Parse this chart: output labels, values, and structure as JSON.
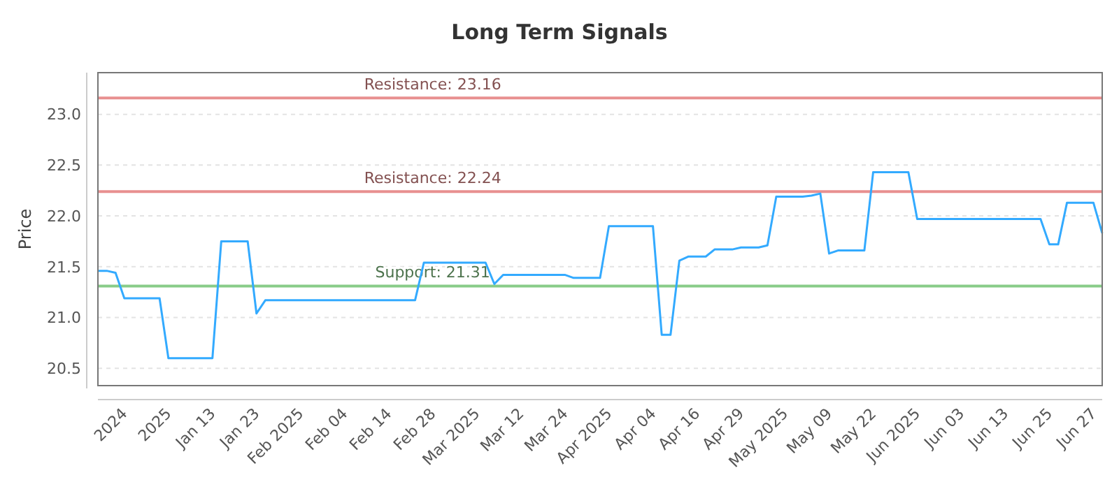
{
  "chart_data": {
    "type": "line",
    "title": "Long Term Signals",
    "ylabel": "Price",
    "categories": [
      null,
      null,
      null,
      "2024",
      null,
      null,
      null,
      null,
      "2025",
      null,
      null,
      null,
      null,
      "Jan 13",
      null,
      null,
      null,
      null,
      "Jan 23",
      null,
      null,
      null,
      null,
      "Feb 2025",
      null,
      null,
      null,
      null,
      "Feb 04",
      null,
      null,
      null,
      null,
      "Feb 14",
      null,
      null,
      null,
      null,
      "Feb 28",
      null,
      null,
      null,
      null,
      "Mar 2025",
      null,
      null,
      null,
      null,
      "Mar 12",
      null,
      null,
      null,
      null,
      "Mar 24",
      null,
      null,
      null,
      null,
      "Apr 2025",
      null,
      null,
      null,
      null,
      "Apr 04",
      null,
      null,
      null,
      null,
      "Apr 16",
      null,
      null,
      null,
      null,
      "Apr 29",
      null,
      null,
      null,
      null,
      "May 2025",
      null,
      null,
      null,
      null,
      "May 09",
      null,
      null,
      null,
      null,
      "May 22",
      null,
      null,
      null,
      null,
      "Jun 2025",
      null,
      null,
      null,
      null,
      "Jun 03",
      null,
      null,
      null,
      null,
      "Jun 13",
      null,
      null,
      null,
      null,
      "Jun 25",
      null,
      null,
      null,
      null,
      "Jun 27",
      null
    ],
    "series": [
      {
        "color": "#33aaff",
        "values": [
          21.46,
          21.46,
          21.44,
          21.19,
          21.19,
          21.19,
          21.19,
          21.19,
          20.6,
          20.6,
          20.6,
          20.6,
          20.6,
          20.6,
          21.75,
          21.75,
          21.75,
          21.75,
          21.04,
          21.17,
          21.17,
          21.17,
          21.17,
          21.17,
          21.17,
          21.17,
          21.17,
          21.17,
          21.17,
          21.17,
          21.17,
          21.17,
          21.17,
          21.17,
          21.17,
          21.17,
          21.17,
          21.54,
          21.54,
          21.54,
          21.54,
          21.54,
          21.54,
          21.54,
          21.54,
          21.33,
          21.42,
          21.42,
          21.42,
          21.42,
          21.42,
          21.42,
          21.42,
          21.42,
          21.39,
          21.39,
          21.39,
          21.39,
          21.9,
          21.9,
          21.9,
          21.9,
          21.9,
          21.9,
          20.83,
          20.83,
          21.56,
          21.6,
          21.6,
          21.6,
          21.67,
          21.67,
          21.67,
          21.69,
          21.69,
          21.69,
          21.71,
          22.19,
          22.19,
          22.19,
          22.19,
          22.2,
          22.22,
          21.63,
          21.66,
          21.66,
          21.66,
          21.66,
          22.43,
          22.43,
          22.43,
          22.43,
          22.43,
          21.97,
          21.97,
          21.97,
          21.97,
          21.97,
          21.97,
          21.97,
          21.97,
          21.97,
          21.97,
          21.97,
          21.97,
          21.97,
          21.97,
          21.97,
          21.72,
          21.72,
          22.13,
          22.13,
          22.13,
          22.13,
          21.83
        ]
      }
    ],
    "ylim": [
      20.33,
      23.41
    ],
    "yticks": [
      20.5,
      {
        "value": 21,
        "label": "21.0"
      },
      21.5,
      {
        "value": 22,
        "label": "22.0"
      },
      22.5,
      {
        "value": 23,
        "label": "23.0"
      }
    ],
    "grid": "y",
    "marker": "none",
    "line_style": "solid",
    "ref_lines": [
      {
        "axis": "y",
        "value": 23.16,
        "label": "Resistance: 23.16",
        "color": "#e89090"
      },
      {
        "axis": "y",
        "value": 22.24,
        "label": "Resistance: 22.24",
        "color": "#e89090"
      },
      {
        "axis": "y",
        "value": 21.31,
        "label": "Support: 21.31",
        "color": "#88cc88"
      }
    ]
  }
}
